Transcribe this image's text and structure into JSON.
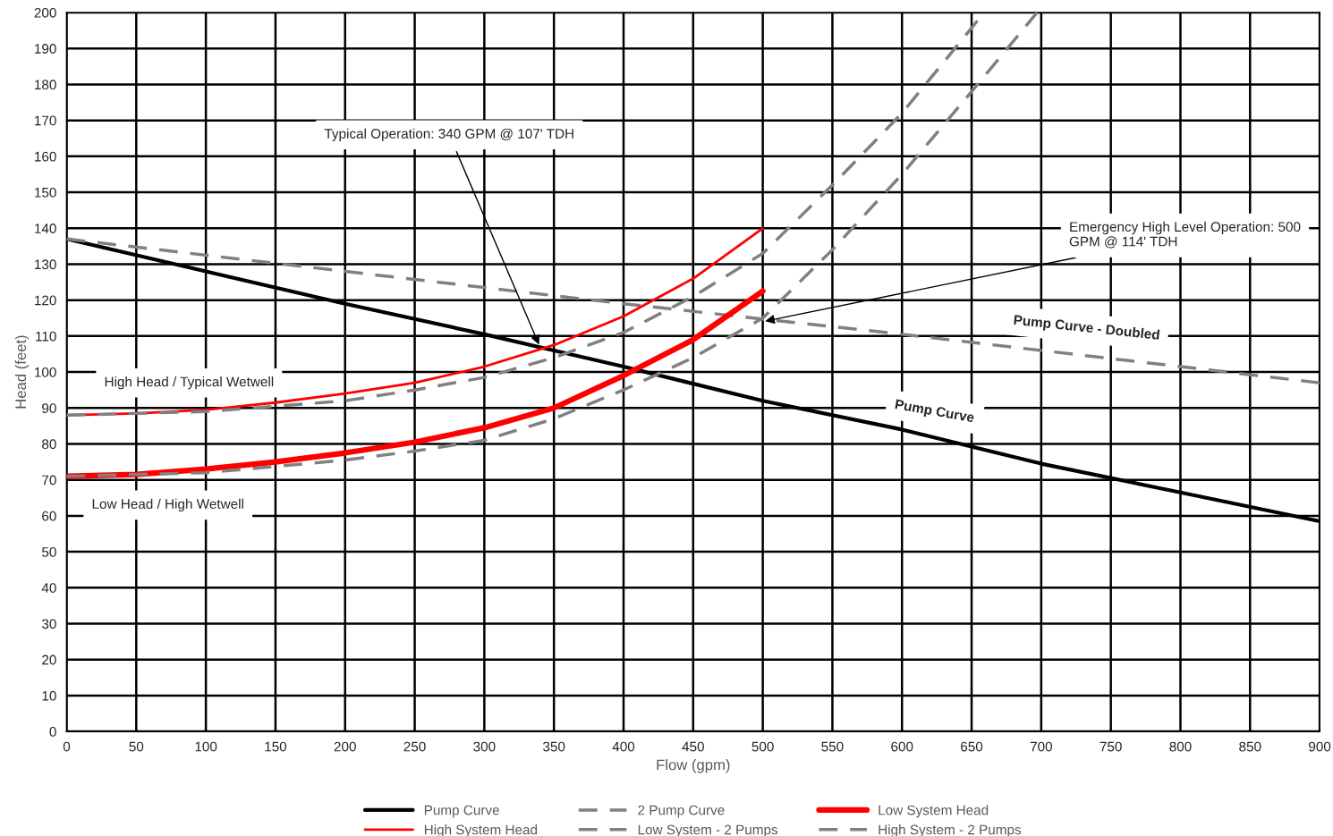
{
  "chart_data": {
    "type": "line",
    "xlabel": "Flow (gpm)",
    "ylabel": "Head (feet)",
    "xlim": [
      0,
      900
    ],
    "xticks": [
      0,
      50,
      100,
      150,
      200,
      250,
      300,
      350,
      400,
      450,
      500,
      550,
      600,
      650,
      700,
      750,
      800,
      850,
      900
    ],
    "ylim": [
      0,
      200
    ],
    "yticks": [
      0,
      10,
      20,
      30,
      40,
      50,
      60,
      70,
      80,
      90,
      100,
      110,
      120,
      130,
      140,
      150,
      160,
      170,
      180,
      190,
      200
    ],
    "grid": true,
    "legend": "bottom",
    "marker": "none",
    "series": [
      {
        "name": "Pump Curve",
        "color": "#000000",
        "line_style": "solid",
        "x": [
          0,
          100,
          200,
          300,
          350,
          400,
          500,
          600,
          700,
          800,
          900
        ],
        "values": [
          137,
          128,
          119,
          110.5,
          106,
          101.5,
          92,
          84,
          74.5,
          66.5,
          58.5
        ]
      },
      {
        "name": "2 Pump Curve",
        "color": "#808080",
        "line_style": "dashed",
        "x": [
          0,
          200,
          400,
          600,
          700,
          800,
          900
        ],
        "values": [
          137,
          128,
          119,
          110.5,
          106,
          101.5,
          97
        ]
      },
      {
        "name": "Low System Head",
        "color": "#ff0000",
        "line_style": "solid",
        "x": [
          0,
          50,
          100,
          150,
          200,
          250,
          300,
          350,
          400,
          450,
          500
        ],
        "values": [
          71,
          71.5,
          73,
          75,
          77.5,
          80.5,
          84.5,
          90,
          99,
          109,
          122.5
        ]
      },
      {
        "name": "High System Head",
        "color": "#ff0000",
        "line_style": "solid",
        "x": [
          0,
          50,
          100,
          150,
          200,
          250,
          300,
          350,
          400,
          450,
          500
        ],
        "values": [
          88,
          88.5,
          89.5,
          91.5,
          94,
          97,
          101.5,
          107.5,
          115.5,
          126,
          140
        ]
      },
      {
        "name": "Low System - 2 Pumps",
        "color": "#808080",
        "line_style": "dashed",
        "x": [
          0,
          100,
          200,
          250,
          300,
          350,
          400,
          450,
          500,
          550,
          600,
          650,
          697
        ],
        "values": [
          71,
          72,
          75.5,
          78,
          81,
          87,
          95,
          104,
          115,
          134,
          155,
          178,
          200
        ]
      },
      {
        "name": "High System - 2 Pumps",
        "color": "#808080",
        "line_style": "dashed",
        "x": [
          0,
          100,
          200,
          250,
          300,
          350,
          400,
          450,
          500,
          550,
          600,
          659
        ],
        "values": [
          88,
          89,
          92,
          95,
          98.5,
          104,
          111,
          121,
          133,
          152,
          172,
          200
        ]
      }
    ],
    "annotations": [
      {
        "text": "Typical Operation: 340 GPM @ 107' TDH",
        "x": 340,
        "y": 107
      },
      {
        "text": "Emergency High Level Operation: 500\nGPM @ 114' TDH",
        "x": 500,
        "y": 114
      },
      "High Head / Typical Wetwell",
      "Low Head / High Wetwell",
      "Pump Curve - Doubled",
      "Pump Curve"
    ]
  }
}
